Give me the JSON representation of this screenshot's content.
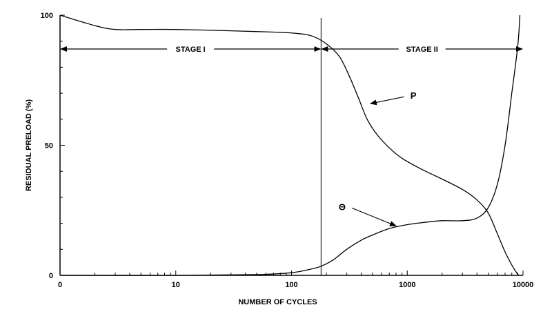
{
  "chart_data": {
    "type": "line",
    "title": "",
    "xlabel": "NUMBER OF CYCLES",
    "ylabel": "RESIDUAL PRELOAD (%)",
    "x_scale": "log",
    "xlim": [
      1,
      10000
    ],
    "ylim": [
      0,
      100
    ],
    "x_ticks": [
      {
        "value": 1,
        "label": "0"
      },
      {
        "value": 10,
        "label": "10"
      },
      {
        "value": 100,
        "label": "100"
      },
      {
        "value": 1000,
        "label": "1000"
      },
      {
        "value": 10000,
        "label": "10000"
      }
    ],
    "y_ticks": [
      {
        "value": 0,
        "label": "0"
      },
      {
        "value": 50,
        "label": "50"
      },
      {
        "value": 100,
        "label": "100"
      }
    ],
    "grid": false,
    "legend": "none",
    "stages": [
      {
        "label": "STAGE I",
        "from": 1,
        "to": 180
      },
      {
        "label": "STAGE II",
        "from": 180,
        "to": 10000
      }
    ],
    "stage_boundary": 180,
    "stage_arrow_y": 87,
    "series": [
      {
        "name": "P",
        "points": [
          [
            1,
            100
          ],
          [
            2,
            96
          ],
          [
            3,
            94.5
          ],
          [
            5,
            94.5
          ],
          [
            10,
            94.5
          ],
          [
            30,
            94
          ],
          [
            70,
            93.5
          ],
          [
            110,
            93
          ],
          [
            150,
            92
          ],
          [
            200,
            89
          ],
          [
            260,
            84
          ],
          [
            320,
            76
          ],
          [
            380,
            68
          ],
          [
            450,
            60
          ],
          [
            550,
            54
          ],
          [
            700,
            49
          ],
          [
            900,
            45
          ],
          [
            1300,
            41
          ],
          [
            2000,
            37
          ],
          [
            3000,
            33
          ],
          [
            4000,
            29
          ],
          [
            5000,
            24
          ],
          [
            6000,
            16
          ],
          [
            7000,
            9
          ],
          [
            8000,
            4
          ],
          [
            8800,
            1
          ],
          [
            9200,
            0
          ]
        ]
      },
      {
        "name": "Θ",
        "points": [
          [
            1,
            0
          ],
          [
            10,
            0
          ],
          [
            50,
            0.3
          ],
          [
            100,
            1
          ],
          [
            150,
            2.5
          ],
          [
            180,
            3.5
          ],
          [
            230,
            6
          ],
          [
            300,
            10
          ],
          [
            400,
            13.5
          ],
          [
            500,
            15.5
          ],
          [
            700,
            18
          ],
          [
            1000,
            19.5
          ],
          [
            1500,
            20.5
          ],
          [
            2000,
            21
          ],
          [
            3000,
            21
          ],
          [
            4000,
            22
          ],
          [
            5000,
            26
          ],
          [
            6000,
            35
          ],
          [
            7000,
            50
          ],
          [
            8000,
            70
          ],
          [
            9000,
            88
          ],
          [
            9400,
            100
          ]
        ]
      }
    ],
    "annotations": [
      {
        "text": "P",
        "target": [
          480,
          66
        ]
      },
      {
        "text": "Θ",
        "target": [
          800,
          19
        ]
      }
    ]
  }
}
